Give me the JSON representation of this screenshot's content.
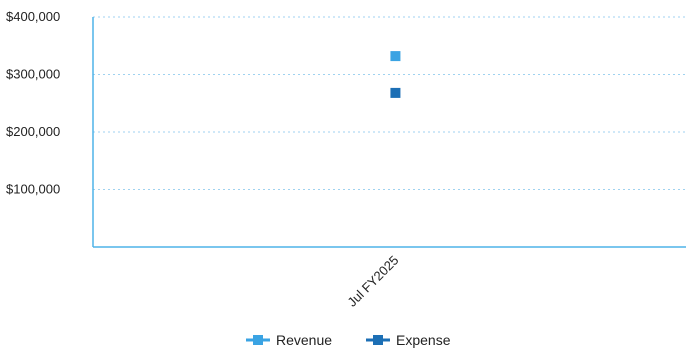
{
  "chart_data": {
    "type": "scatter",
    "categories": [
      "Jul FY2025"
    ],
    "series": [
      {
        "name": "Revenue",
        "values": [
          332000
        ],
        "color": "#3AA3E3"
      },
      {
        "name": "Expense",
        "values": [
          268000
        ],
        "color": "#1C6FB5"
      }
    ],
    "title": "",
    "xlabel": "",
    "ylabel": "",
    "ylim": [
      0,
      400000
    ],
    "yticks": [
      {
        "value": 400000,
        "label": "$400,000"
      },
      {
        "value": 300000,
        "label": "$300,000"
      },
      {
        "value": 200000,
        "label": "$200,000"
      },
      {
        "value": 100000,
        "label": "$100,000"
      }
    ],
    "grid": true,
    "legend": "bottom",
    "axis_color": "#4FB3E8",
    "grid_color": "#9FD2F0"
  }
}
